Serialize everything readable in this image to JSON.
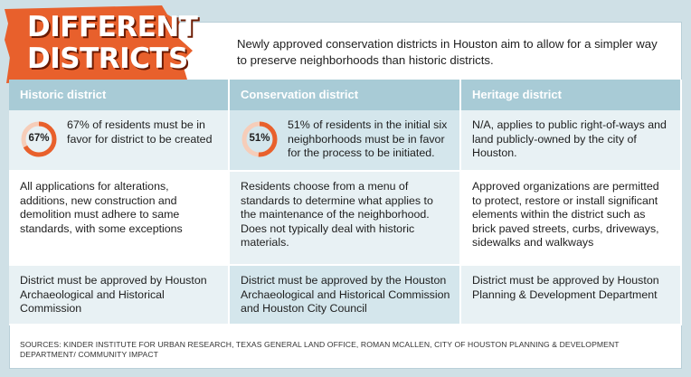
{
  "title": {
    "line1": "DIFFERENT",
    "line2": "DISTRICTS"
  },
  "intro": "Newly approved conservation districts in Houston aim to allow for a simpler way to preserve neighborhoods than historic districts.",
  "columns": [
    "Historic district",
    "Conservation district",
    "Heritage district"
  ],
  "rows": [
    {
      "historic": {
        "pct_label": "67%",
        "pct_value": 67,
        "text": "67% of residents must be in favor for district to be created"
      },
      "conservation": {
        "pct_label": "51%",
        "pct_value": 51,
        "text": "51% of residents in the initial six neighborhoods must be in favor for the process to be initiated."
      },
      "heritage": {
        "text": "N/A, applies to public right-of-ways and land publicly-owned by the city of Houston."
      }
    },
    {
      "historic": {
        "text": "All applications for alterations, additions, new construction and demolition must adhere to same standards, with some exceptions"
      },
      "conservation": {
        "text": "Residents choose from a menu of standards to determine what applies to the maintenance of the neighborhood. Does not typically deal with historic materials."
      },
      "heritage": {
        "text": "Approved organizations are permitted to protect, restore or install significant elements within the district such as brick paved streets, curbs, driveways, sidewalks and walkways"
      }
    },
    {
      "historic": {
        "text": "District must be approved by Houston Archaeological and Historical Commission"
      },
      "conservation": {
        "text": "District must be approved by the Houston Archaeological and Historical Commission and Houston City Council"
      },
      "heritage": {
        "text": "District must be approved by Houston Planning & Development Department"
      }
    }
  ],
  "sources": "SOURCES: KINDER INSTITUTE FOR URBAN RESEARCH, TEXAS GENERAL LAND OFFICE, ROMAN MCALLEN, CITY OF HOUSTON PLANNING & DEVELOPMENT DEPARTMENT/ COMMUNITY IMPACT",
  "colors": {
    "accent": "#e8602c",
    "header": "#a8cbd6",
    "row_light": "#e8f1f4",
    "row_mid": "#d4e6ec"
  }
}
